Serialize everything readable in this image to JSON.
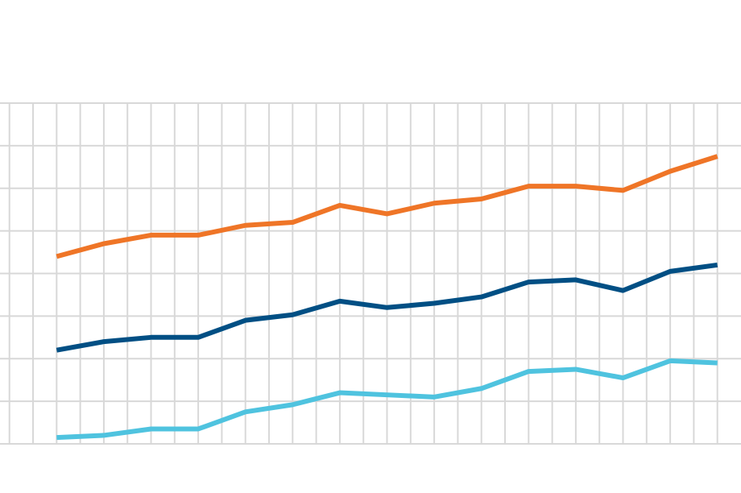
{
  "chart_data": {
    "type": "line",
    "title": "",
    "xlabel": "",
    "ylabel": "",
    "grid": true,
    "legend": "none",
    "x": [
      1,
      2,
      3,
      4,
      5,
      6,
      7,
      8,
      9,
      10,
      11,
      12,
      13,
      14,
      15
    ],
    "xlim": [
      -0.2,
      15.5
    ],
    "ylim": [
      -0.1,
      7.9
    ],
    "series": [
      {
        "color": "#ef7527",
        "values": [
          4.3,
          4.6,
          4.8,
          4.8,
          5.03,
          5.1,
          5.5,
          5.3,
          5.55,
          5.65,
          5.95,
          5.95,
          5.85,
          6.3,
          6.65
        ]
      },
      {
        "color": "#004f84",
        "values": [
          2.1,
          2.3,
          2.4,
          2.4,
          2.8,
          2.93,
          3.25,
          3.1,
          3.2,
          3.35,
          3.7,
          3.75,
          3.5,
          3.95,
          4.1
        ]
      },
      {
        "color": "#4fc3df",
        "values": [
          0.05,
          0.1,
          0.25,
          0.25,
          0.65,
          0.82,
          1.1,
          1.05,
          1.0,
          1.2,
          1.6,
          1.65,
          1.45,
          1.85,
          1.8
        ]
      }
    ],
    "grid_color": "#d8d8d8"
  }
}
